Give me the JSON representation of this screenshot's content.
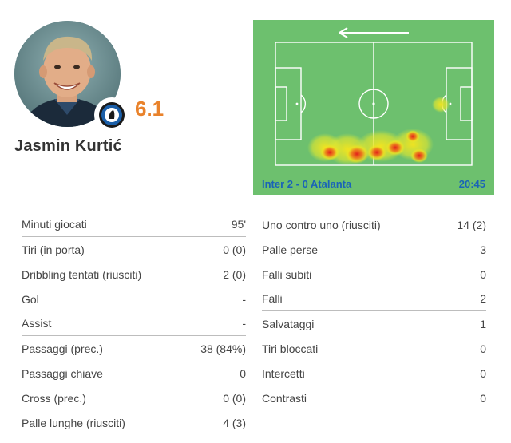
{
  "player": {
    "name": "Jasmin Kurtić",
    "rating": "6.1"
  },
  "heatmap": {
    "score": "Inter 2 - 0 Atalanta",
    "time": "20:45",
    "attack_direction": "left",
    "pitch_color": "#6dc06e"
  },
  "stats_left": [
    {
      "label": "Minuti giocati",
      "value": "95'"
    },
    {
      "label": "Tiri (in porta)",
      "value": "0 (0)"
    },
    {
      "label": "Dribbling tentati (riusciti)",
      "value": "2 (0)"
    },
    {
      "label": "Gol",
      "value": "-"
    },
    {
      "label": "Assist",
      "value": "-"
    },
    {
      "label": "Passaggi (prec.)",
      "value": "38 (84%)"
    },
    {
      "label": "Passaggi chiave",
      "value": "0"
    },
    {
      "label": "Cross (prec.)",
      "value": "0 (0)"
    },
    {
      "label": "Palle lunghe (riusciti)",
      "value": "4 (3)"
    }
  ],
  "stats_right": [
    {
      "label": "Uno contro uno (riusciti)",
      "value": "14 (2)"
    },
    {
      "label": "Palle perse",
      "value": "3"
    },
    {
      "label": "Falli subiti",
      "value": "0"
    },
    {
      "label": "Falli",
      "value": "2"
    },
    {
      "label": "Salvataggi",
      "value": "1"
    },
    {
      "label": "Tiri bloccati",
      "value": "0"
    },
    {
      "label": "Intercetti",
      "value": "0"
    },
    {
      "label": "Contrasti",
      "value": "0"
    }
  ],
  "colors": {
    "rating": "#e9822b",
    "score_text": "#1a63b8"
  }
}
